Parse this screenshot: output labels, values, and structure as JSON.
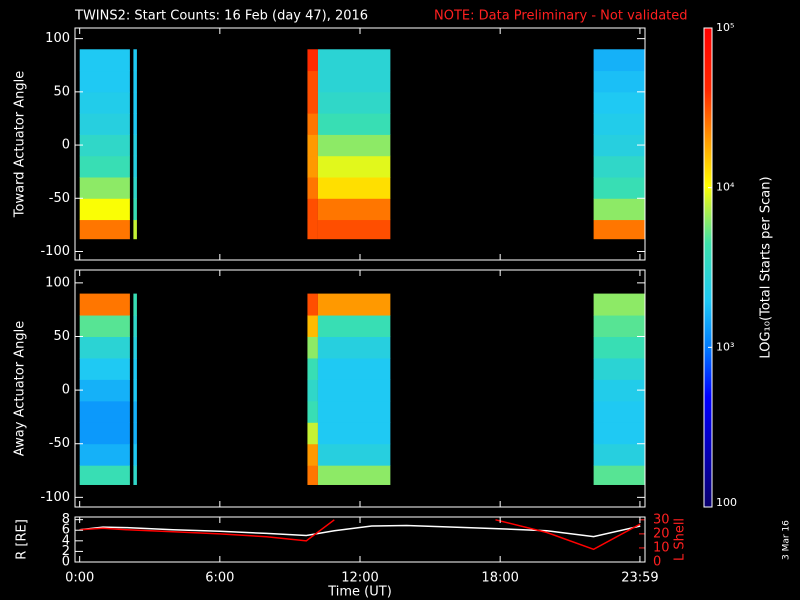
{
  "header": {
    "title": "TWINS2: Start Counts: 16 Feb (day  47), 2016",
    "note": "NOTE: Data Preliminary - Not validated"
  },
  "chart_data": [
    {
      "type": "heatmap",
      "ylabel": "Toward Actuator Angle",
      "xlim": [
        -0.2,
        24.2
      ],
      "ylim": [
        -108,
        110
      ],
      "yticks": [
        -100,
        -50,
        0,
        50,
        100
      ],
      "angle_bins": [
        -88,
        -70,
        -50,
        -30,
        -10,
        10,
        30,
        50,
        70,
        90
      ],
      "blocks": [
        {
          "t": [
            0,
            2.15
          ],
          "values": [
            25000,
            10000,
            6300,
            4000,
            3200,
            2500,
            2200,
            2000,
            2000
          ]
        },
        {
          "t": [
            2.3,
            2.45
          ],
          "values": [
            8000,
            4000,
            3200,
            2500,
            2500,
            2000,
            2000,
            2000,
            2000
          ]
        },
        {
          "t": [
            9.75,
            10.2
          ],
          "values": [
            32000,
            32000,
            25000,
            20000,
            20000,
            25000,
            32000,
            32000,
            40000
          ]
        },
        {
          "t": [
            10.2,
            13.3
          ],
          "values": [
            32000,
            25000,
            12600,
            9000,
            6300,
            4000,
            3200,
            2800,
            2800
          ]
        },
        {
          "t": [
            22,
            24.2
          ],
          "values": [
            25000,
            6300,
            4000,
            3200,
            2500,
            2200,
            2000,
            1800,
            1600
          ]
        }
      ]
    },
    {
      "type": "heatmap",
      "ylabel": "Away Actuator Angle",
      "xlim": [
        -0.2,
        24.2
      ],
      "ylim": [
        -109,
        112
      ],
      "yticks": [
        -100,
        -50,
        0,
        50,
        100
      ],
      "angle_bins": [
        -88,
        -70,
        -50,
        -30,
        -10,
        10,
        30,
        50,
        70,
        90
      ],
      "blocks": [
        {
          "t": [
            0,
            2.15
          ],
          "values": [
            4000,
            1600,
            1300,
            1300,
            1600,
            2000,
            2800,
            5000,
            25000
          ]
        },
        {
          "t": [
            2.3,
            2.45
          ],
          "values": [
            3200,
            2000,
            1600,
            1600,
            2000,
            2000,
            2500,
            3200,
            4000
          ]
        },
        {
          "t": [
            9.75,
            10.2
          ],
          "values": [
            25000,
            20000,
            8000,
            4000,
            3200,
            4000,
            6300,
            16000,
            32000
          ]
        },
        {
          "t": [
            10.2,
            13.3
          ],
          "values": [
            6300,
            2500,
            2000,
            2000,
            2000,
            2000,
            2500,
            4000,
            20000
          ]
        },
        {
          "t": [
            22,
            24.2
          ],
          "values": [
            5000,
            2500,
            2000,
            2000,
            2200,
            2800,
            4000,
            5000,
            6300
          ]
        }
      ]
    },
    {
      "type": "line",
      "ylabel": "R [RE]",
      "y2label": "L Shell",
      "xlabel": "Time (UT)",
      "xlim": [
        -0.2,
        24.2
      ],
      "xticks": [
        {
          "value": 0,
          "label": "0:00"
        },
        {
          "value": 6,
          "label": "6:00"
        },
        {
          "value": 12,
          "label": "12:00"
        },
        {
          "value": 18,
          "label": "18:00"
        },
        {
          "value": 23.983,
          "label": "23:59"
        }
      ],
      "ylim": [
        0,
        8.5
      ],
      "yticks": [
        0,
        2,
        4,
        6,
        8
      ],
      "y2lim": [
        0,
        32
      ],
      "y2ticks": [
        0,
        10,
        20,
        30
      ],
      "x": [
        0,
        1,
        2,
        4,
        6,
        8,
        9.7,
        10.9,
        12.5,
        14,
        16,
        17.8,
        20,
        22,
        24
      ],
      "series": [
        {
          "color": "#ffffff",
          "values": [
            6.1,
            6.6,
            6.5,
            6.1,
            5.8,
            5.4,
            5.0,
            5.9,
            6.8,
            6.9,
            6.6,
            6.3,
            5.9,
            4.8,
            6.8
          ]
        },
        {
          "color": "#ff0000",
          "axis": "y2",
          "values": [
            23,
            24,
            23,
            21.5,
            20,
            18,
            15,
            30,
            null,
            null,
            null,
            30,
            21,
            9,
            27
          ]
        }
      ]
    }
  ],
  "colorbar": {
    "label": "LOG₁₀(Total Starts per Scan)",
    "zlim": [
      100,
      100000
    ],
    "log": true,
    "zticks": [
      100,
      {
        "value": 1000,
        "label": "10³"
      },
      {
        "value": 10000,
        "label": "10⁴"
      },
      {
        "value": 100000,
        "label": "10⁵"
      }
    ]
  },
  "footer": {
    "date": "3 Mar 16"
  }
}
